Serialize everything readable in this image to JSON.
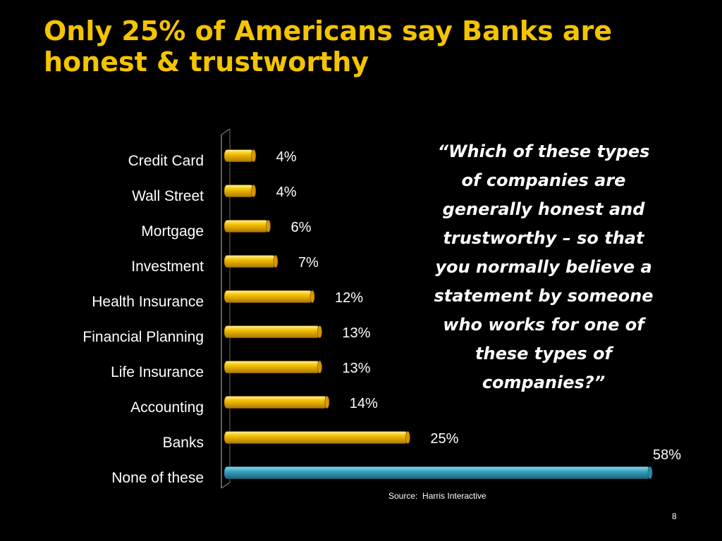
{
  "slide": {
    "title_lines": [
      "Only 25% of Americans say Banks are",
      "honest & trustworthy"
    ],
    "quote_lines": [
      "“Which of these types",
      "of companies are",
      "generally honest and",
      "trustworthy – so that",
      "you normally believe a",
      "statement by someone",
      "who works for one of",
      "these types of",
      "companies?”"
    ],
    "source": "Source:  Harris Interactive",
    "page_number": "8"
  },
  "colors": {
    "title": "#F5C400",
    "bar_gold": "#F5B800",
    "bar_highlight": "#3AA3BE",
    "text": "#FFFFFF",
    "background": "#000000"
  },
  "chart_data": {
    "type": "bar",
    "orientation": "horizontal",
    "categories": [
      "Credit Card",
      "Wall Street",
      "Mortgage",
      "Investment",
      "Health Insurance",
      "Financial Planning",
      "Life Insurance",
      "Accounting",
      "Banks",
      "None of these"
    ],
    "values": [
      4,
      4,
      6,
      7,
      12,
      13,
      13,
      14,
      25,
      58
    ],
    "value_labels": [
      "4%",
      "4%",
      "6%",
      "7%",
      "12%",
      "13%",
      "13%",
      "14%",
      "25%",
      "58%"
    ],
    "xlim": [
      0,
      58
    ],
    "highlight_category": "None of these",
    "grid": false,
    "legend": "none"
  }
}
